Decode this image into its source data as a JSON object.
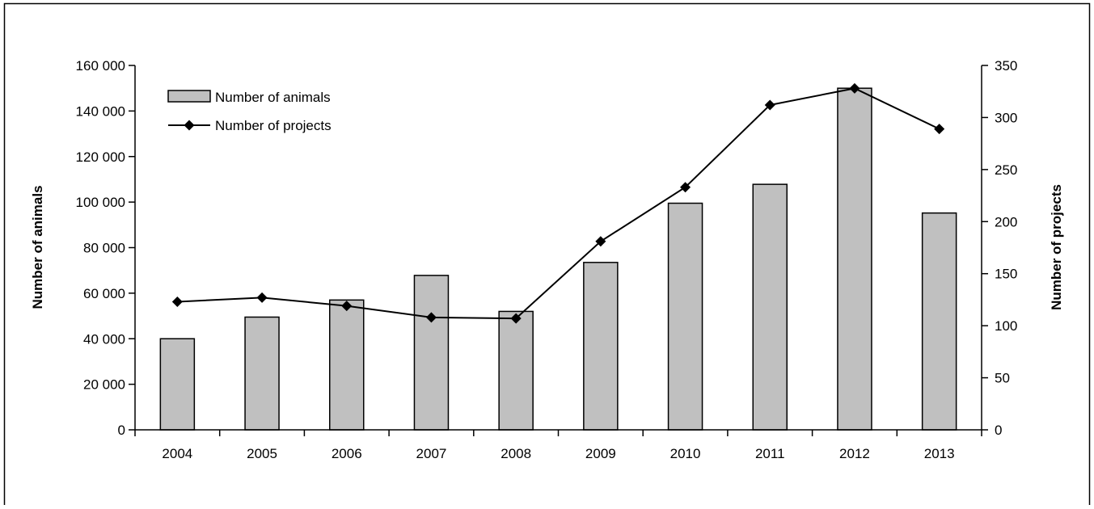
{
  "chart_data": {
    "type": "bar",
    "categories": [
      "2004",
      "2005",
      "2006",
      "2007",
      "2008",
      "2009",
      "2010",
      "2011",
      "2012",
      "2013"
    ],
    "series": [
      {
        "name": "Number of animals",
        "type": "bar",
        "axis": "left",
        "values": [
          40000,
          49500,
          57000,
          67800,
          52000,
          73500,
          99500,
          107800,
          150000,
          95200
        ]
      },
      {
        "name": "Number of projects",
        "type": "line",
        "axis": "right",
        "marker": "diamond",
        "values": [
          123,
          127,
          119,
          108,
          107,
          181,
          233,
          312,
          328,
          289
        ]
      }
    ],
    "ylabel": "Number of animals",
    "y2label": "Number of projects",
    "ylim": [
      0,
      160000
    ],
    "y2lim": [
      0,
      350
    ],
    "yticks": [
      "0",
      "20 000",
      "40 000",
      "60 000",
      "80 000",
      "100 000",
      "120 000",
      "140 000",
      "160 000"
    ],
    "y2ticks": [
      "0",
      "50",
      "100",
      "150",
      "200",
      "250",
      "300",
      "350"
    ],
    "grid": false,
    "legend": "top-left",
    "colors": {
      "bar_fill": "#c0c0c0",
      "bar_stroke": "#000000",
      "line": "#000000",
      "axis": "#000000"
    }
  }
}
